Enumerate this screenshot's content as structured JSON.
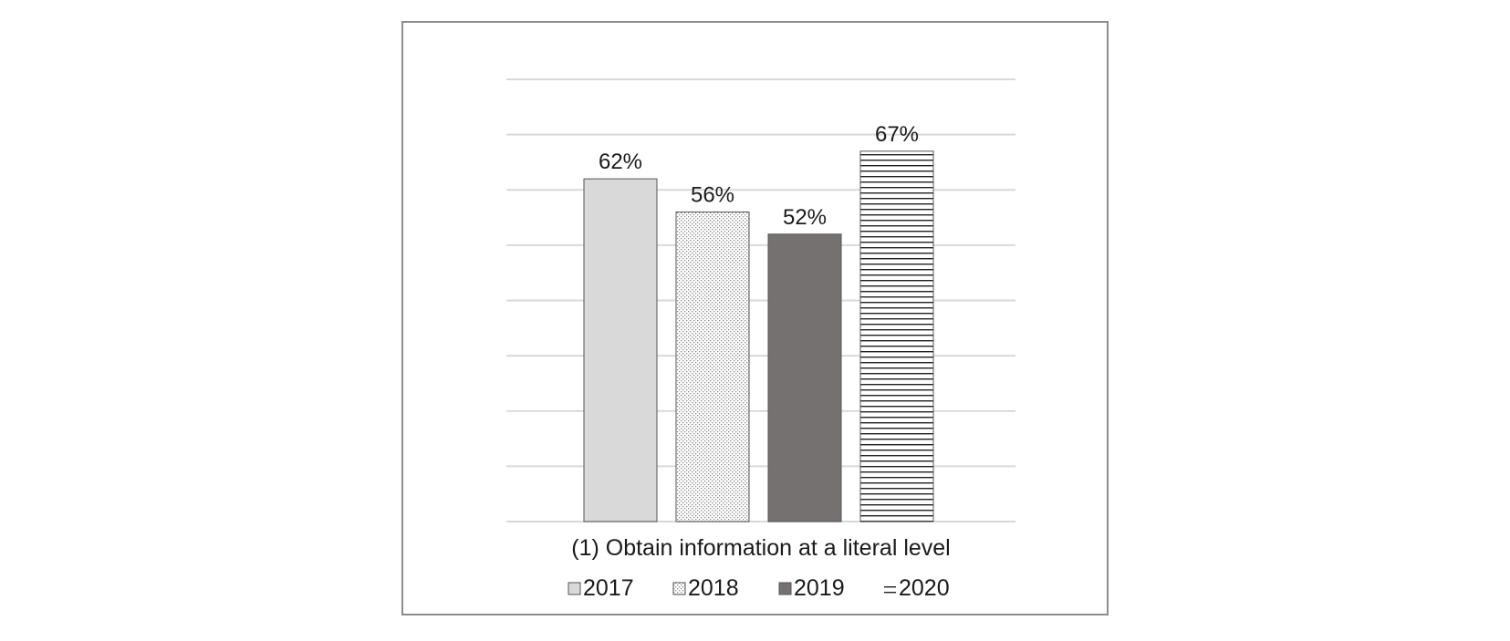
{
  "chart_data": {
    "type": "bar",
    "categories": [
      "(1) Obtain information at a literal level"
    ],
    "series": [
      {
        "name": "2017",
        "values": [
          62
        ],
        "label": "62%",
        "color": "#d9d9d9",
        "pattern": "solid-light"
      },
      {
        "name": "2018",
        "values": [
          56
        ],
        "label": "56%",
        "color": "#ffffff",
        "pattern": "dots"
      },
      {
        "name": "2019",
        "values": [
          52
        ],
        "label": "52%",
        "color": "#767171",
        "pattern": "solid-dark"
      },
      {
        "name": "2020",
        "values": [
          67
        ],
        "label": "67%",
        "color": "#ffffff",
        "pattern": "horizontal-lines"
      }
    ],
    "ylim": [
      0,
      80
    ],
    "gridlines": [
      0,
      10,
      20,
      30,
      40,
      50,
      60,
      70,
      80
    ],
    "grid": true,
    "legend_position": "bottom",
    "title": "",
    "xlabel": "",
    "ylabel": ""
  }
}
